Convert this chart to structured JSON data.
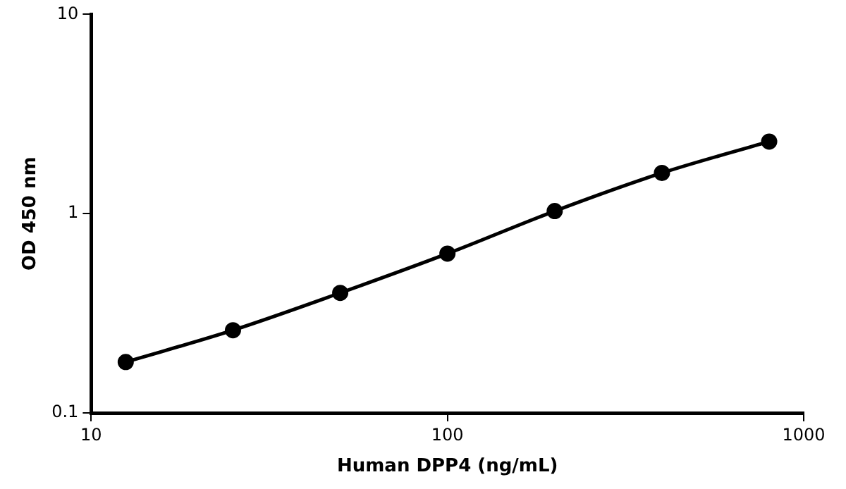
{
  "chart_data": {
    "type": "line",
    "xlabel": "Human DPP4 (ng/mL)",
    "ylabel": "OD 450 nm",
    "log": "xy",
    "grid": false,
    "legend": false,
    "marker": "circle",
    "line_style": "solid",
    "x": [
      12.5,
      25,
      50,
      100,
      200,
      400,
      800
    ],
    "series": [
      {
        "color": "#000000",
        "values": [
          0.18,
          0.26,
          0.4,
          0.63,
          1.03,
          1.6,
          2.3
        ]
      }
    ],
    "xlim": [
      10,
      1000
    ],
    "xticks": [
      10,
      100,
      1000
    ],
    "ylim": [
      0.1,
      10
    ],
    "yticks": [
      0.1,
      1,
      10
    ]
  }
}
